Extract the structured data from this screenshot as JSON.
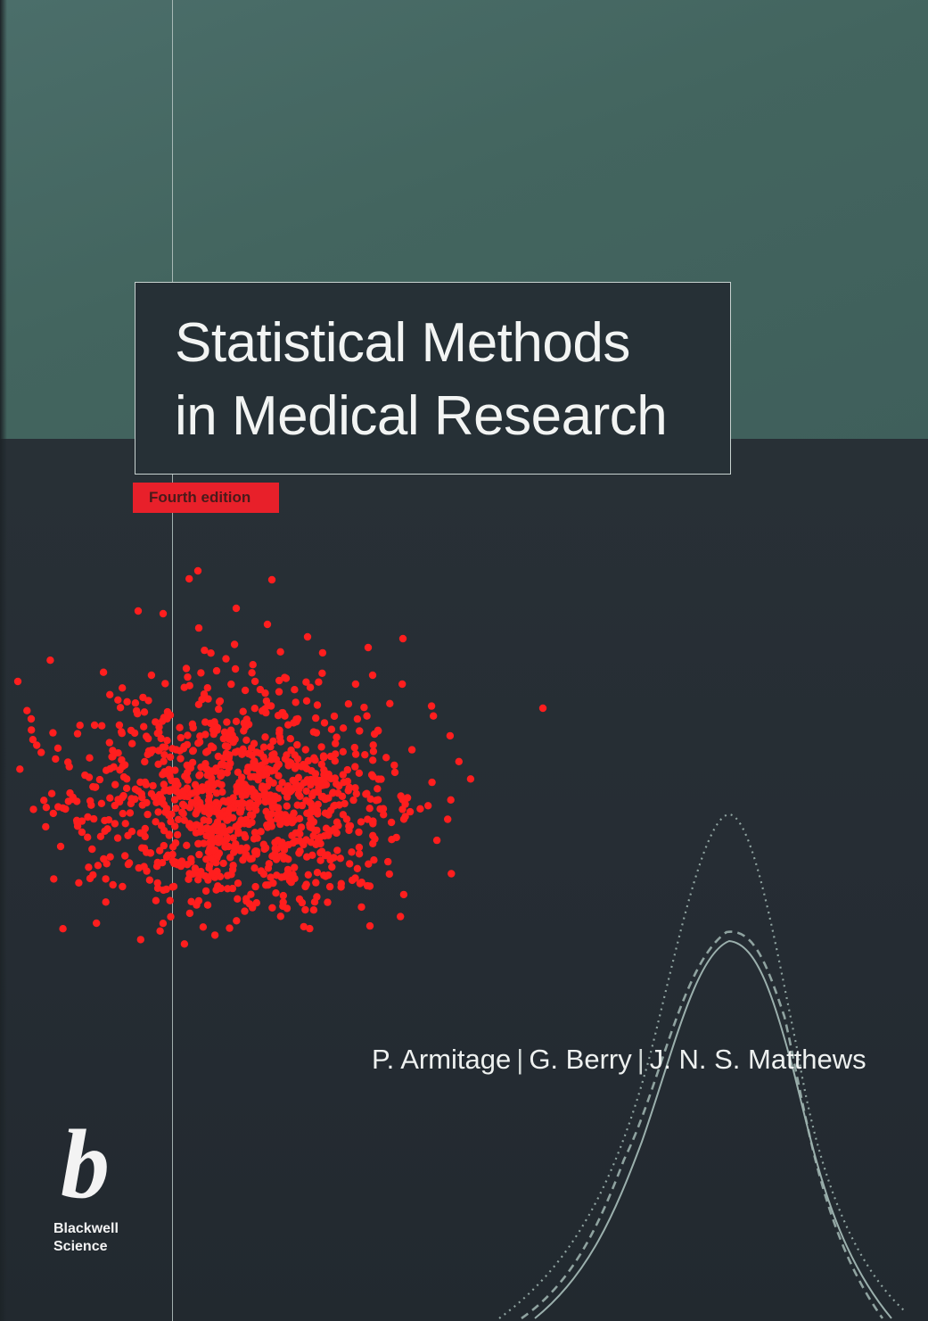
{
  "book": {
    "title_line_1": "Statistical Methods",
    "title_line_2": "in Medical Research",
    "edition": "Fourth edition",
    "authors": [
      "P. Armitage",
      "G. Berry",
      "J. N. S. Matthews"
    ],
    "author_separator": "|",
    "publisher_line_1": "Blackwell",
    "publisher_line_2": "Science",
    "publisher_logo_letter": "b"
  },
  "colors": {
    "top_band": "#43655f",
    "bottom_band": "#252c33",
    "edition_badge": "#e8202a",
    "scatter_points": "#ff1e1e",
    "curve_lines": "#8fa3a0"
  },
  "icons": {
    "publisher_logo": "blackwell-science-logo"
  }
}
